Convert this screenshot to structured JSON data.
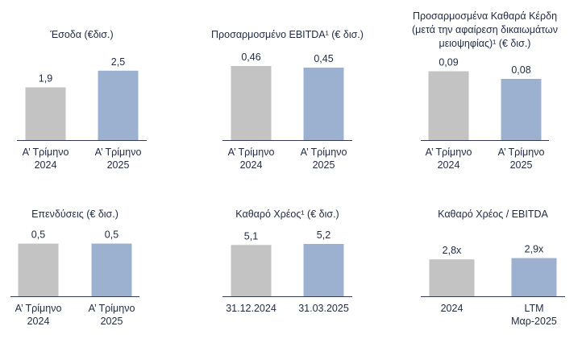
{
  "colors": {
    "gray": "#c3c3c3",
    "blue": "#9cb0cf",
    "text": "#1f2a44",
    "axis": "#2f3b57"
  },
  "chart_data": [
    {
      "type": "bar",
      "title": "Έσοδα (€δισ.)",
      "categories": [
        [
          "Α’ Τρίμηνο",
          "2024"
        ],
        [
          "Α’ Τρίμηνο",
          "2025"
        ]
      ],
      "values": [
        1.9,
        2.5
      ],
      "labels": [
        "1,9",
        "2,5"
      ],
      "ylim": [
        0,
        2.9
      ]
    },
    {
      "type": "bar",
      "title": "Προσαρμοσμένο EBITDA¹ (€ δισ.)",
      "categories": [
        [
          "Α’ Τρίμηνο",
          "2024"
        ],
        [
          "Α’ Τρίμηνο",
          "2025"
        ]
      ],
      "values": [
        0.46,
        0.45
      ],
      "labels": [
        "0,46",
        "0,45"
      ],
      "ylim": [
        0,
        0.5
      ]
    },
    {
      "type": "bar",
      "title": [
        "Προσαρμοσμένα Καθαρά Κέρδη",
        "(μετά την αφαίρεση δικαιωμάτων",
        "μειοψηφίας)¹ (€ δισ.)"
      ],
      "categories": [
        [
          "Α’ Τρίμηνο",
          "2024"
        ],
        [
          "Α’ Τρίμηνο",
          "2025"
        ]
      ],
      "values": [
        0.09,
        0.08
      ],
      "labels": [
        "0,09",
        "0,08"
      ],
      "ylim": [
        0,
        0.1
      ]
    },
    {
      "type": "bar",
      "title": "Επενδύσεις (€ δισ.)",
      "categories": [
        [
          "Α’ Τρίμηνο",
          "2024"
        ],
        [
          "Α’ Τρίμηνο",
          "2025"
        ]
      ],
      "values": [
        0.5,
        0.5
      ],
      "labels": [
        "0,5",
        "0,5"
      ],
      "ylim": [
        0,
        0.55
      ]
    },
    {
      "type": "bar",
      "title": "Καθαρό Χρέος¹ (€ δισ.)",
      "categories": [
        [
          "31.12.2024"
        ],
        [
          "31.03.2025"
        ]
      ],
      "values": [
        5.1,
        5.2
      ],
      "labels": [
        "5,1",
        "5,2"
      ],
      "ylim": [
        0,
        5.6
      ]
    },
    {
      "type": "bar",
      "title": "Καθαρό Χρέος / EBITDA",
      "categories": [
        [
          "2024"
        ],
        [
          "LTM",
          "Μαρ-2025"
        ]
      ],
      "values": [
        2.8,
        2.9
      ],
      "labels": [
        "2,8x",
        "2,9x"
      ],
      "ylim": [
        0,
        4.4
      ]
    }
  ]
}
